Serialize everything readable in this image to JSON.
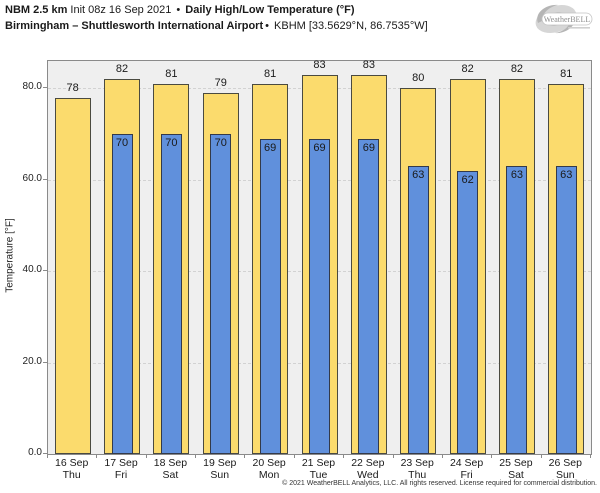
{
  "header": {
    "line1": {
      "model": "NBM 2.5 km",
      "init": " Init 08z 16 Sep 2021 ",
      "separator": "•",
      "product": " Daily High/Low Temperature (°F)"
    },
    "line2": {
      "station": "Birmingham – Shuttlesworth International Airport",
      "separator": "•",
      "station_id": " KBHM [33.5629°N, 86.7535°W]"
    }
  },
  "logo": {
    "text": "WeatherBELL"
  },
  "chart_data": {
    "type": "bar",
    "title": "Daily High/Low Temperature (°F)",
    "ylabel": "Temperature [°F]",
    "ylim": [
      0,
      86
    ],
    "yticks": [
      0,
      20,
      40,
      60,
      80
    ],
    "ytick_labels": [
      "0.0",
      "20.0",
      "40.0",
      "60.0",
      "80.0"
    ],
    "grid": "horizontal-dashed",
    "legend_position": "none",
    "categories": [
      {
        "date": "16 Sep",
        "day": "Thu"
      },
      {
        "date": "17 Sep",
        "day": "Fri"
      },
      {
        "date": "18 Sep",
        "day": "Sat"
      },
      {
        "date": "19 Sep",
        "day": "Sun"
      },
      {
        "date": "20 Sep",
        "day": "Mon"
      },
      {
        "date": "21 Sep",
        "day": "Tue"
      },
      {
        "date": "22 Sep",
        "day": "Wed"
      },
      {
        "date": "23 Sep",
        "day": "Thu"
      },
      {
        "date": "24 Sep",
        "day": "Fri"
      },
      {
        "date": "25 Sep",
        "day": "Sat"
      },
      {
        "date": "26 Sep",
        "day": "Sun"
      }
    ],
    "series": [
      {
        "name": "High",
        "color": "#fbdb6d",
        "values": [
          78,
          82,
          81,
          79,
          81,
          83,
          83,
          80,
          82,
          82,
          81
        ]
      },
      {
        "name": "Low",
        "color": "#6090dc",
        "values": [
          null,
          70,
          70,
          70,
          69,
          69,
          69,
          63,
          62,
          63,
          63
        ]
      }
    ]
  },
  "footer": {
    "copyright": "© 2021 WeatherBELL Analytics, LLC. All rights reserved. License required for commercial distribution."
  },
  "colors": {
    "high_bar": "#fbdb6d",
    "low_bar": "#6090dc",
    "plot_background": "#efefef",
    "gridline": "#d2d2d2",
    "axis": "#8a8a8a"
  }
}
